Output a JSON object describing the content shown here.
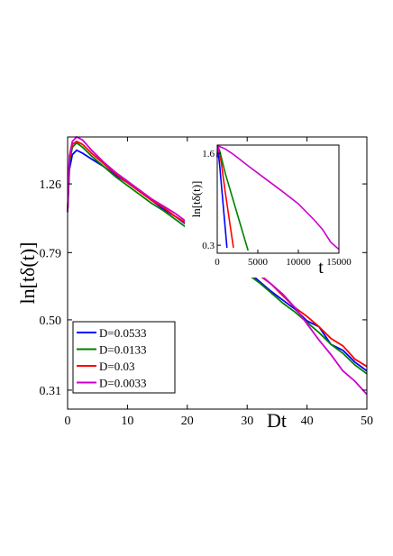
{
  "chart_data": [
    {
      "type": "line",
      "xlabel": "Dt",
      "ylabel": "ln[tδ(t)]",
      "xlim": [
        0,
        50
      ],
      "ylim_ln": [
        -1.3,
        0.55
      ],
      "y_scale": "log",
      "xticks": [
        0,
        10,
        20,
        30,
        40,
        50
      ],
      "xtick_labels": [
        "0",
        "10",
        "20",
        "30",
        "40",
        "50"
      ],
      "yticks_ln": [
        -1.171,
        -0.693,
        -0.236,
        0.231
      ],
      "ytick_labels": [
        "0.31",
        "0.50",
        "0.79",
        "1.26"
      ],
      "grid": false,
      "legend_position": "bottom-left",
      "series": [
        {
          "name": "D=0.0533",
          "color": "#0000ff",
          "x": [
            0,
            0.3,
            0.8,
            1.5,
            2.5,
            4,
            6,
            8,
            10,
            12,
            14,
            16,
            18,
            20,
            22,
            24,
            26,
            28,
            30,
            32,
            34,
            36,
            38,
            40,
            42,
            44,
            46,
            48,
            50
          ],
          "y": [
            0.04,
            0.33,
            0.43,
            0.46,
            0.44,
            0.4,
            0.35,
            0.29,
            0.24,
            0.18,
            0.12,
            0.06,
            0.01,
            -0.05,
            -0.11,
            -0.17,
            -0.24,
            -0.3,
            -0.36,
            -0.43,
            -0.5,
            -0.56,
            -0.62,
            -0.7,
            -0.74,
            -0.86,
            -0.9,
            -0.98,
            -1.04
          ]
        },
        {
          "name": "D=0.0133",
          "color": "#008000",
          "x": [
            0,
            0.3,
            0.8,
            1.5,
            2.5,
            4,
            6,
            8,
            10,
            12,
            14,
            16,
            18,
            20,
            22,
            24,
            26,
            28,
            30,
            32,
            34,
            36,
            38,
            40,
            42,
            44,
            46,
            48,
            50
          ],
          "y": [
            0.04,
            0.38,
            0.48,
            0.51,
            0.48,
            0.42,
            0.35,
            0.28,
            0.22,
            0.16,
            0.1,
            0.05,
            -0.01,
            -0.07,
            -0.12,
            -0.19,
            -0.25,
            -0.31,
            -0.38,
            -0.44,
            -0.51,
            -0.58,
            -0.64,
            -0.71,
            -0.78,
            -0.86,
            -0.92,
            -1.0,
            -1.06
          ]
        },
        {
          "name": "D=0.03",
          "color": "#ff0000",
          "x": [
            0,
            0.3,
            0.8,
            1.5,
            2.5,
            4,
            6,
            8,
            10,
            12,
            14,
            16,
            18,
            20,
            22,
            24,
            26,
            28,
            30,
            32,
            34,
            36,
            38,
            40,
            42,
            44,
            46,
            48,
            50
          ],
          "y": [
            0.04,
            0.4,
            0.5,
            0.52,
            0.5,
            0.44,
            0.37,
            0.3,
            0.24,
            0.18,
            0.12,
            0.07,
            0.01,
            -0.04,
            -0.1,
            -0.16,
            -0.22,
            -0.28,
            -0.33,
            -0.39,
            -0.45,
            -0.53,
            -0.61,
            -0.67,
            -0.74,
            -0.82,
            -0.87,
            -0.96,
            -1.01
          ]
        },
        {
          "name": "D=0.0033",
          "color": "#cc00cc",
          "x": [
            0,
            0.3,
            0.8,
            1.5,
            2.5,
            4,
            6,
            8,
            10,
            12,
            14,
            16,
            18,
            20,
            22,
            24,
            26,
            28,
            30,
            32,
            34,
            36,
            38,
            40,
            42,
            44,
            46,
            48,
            50
          ],
          "y": [
            0.04,
            0.42,
            0.52,
            0.55,
            0.53,
            0.46,
            0.38,
            0.31,
            0.25,
            0.19,
            0.13,
            0.08,
            0.03,
            -0.03,
            -0.09,
            -0.14,
            -0.2,
            -0.26,
            -0.32,
            -0.38,
            -0.45,
            -0.52,
            -0.61,
            -0.72,
            -0.83,
            -0.93,
            -1.04,
            -1.11,
            -1.2
          ]
        }
      ]
    },
    {
      "type": "line",
      "xlabel": "t",
      "ylabel": "ln[tδ(t)]",
      "xlim": [
        0,
        15000
      ],
      "ylim_ln": [
        -1.35,
        0.62
      ],
      "y_scale": "log",
      "xticks": [
        0,
        5000,
        10000,
        15000
      ],
      "xtick_labels": [
        "0",
        "5000",
        "10000",
        "15000"
      ],
      "yticks_ln": [
        -1.204,
        0.47
      ],
      "ytick_labels": [
        "0.3",
        "1.6"
      ],
      "grid": false,
      "series": [
        {
          "color": "#0000ff",
          "x": [
            0,
            30,
            100,
            300,
            600,
            900,
            1200
          ],
          "y": [
            0.4,
            0.55,
            0.52,
            0.25,
            -0.25,
            -0.75,
            -1.25
          ]
        },
        {
          "color": "#ff0000",
          "x": [
            0,
            60,
            200,
            500,
            1000,
            1500,
            2000
          ],
          "y": [
            0.4,
            0.56,
            0.53,
            0.3,
            -0.25,
            -0.75,
            -1.25
          ]
        },
        {
          "color": "#008000",
          "x": [
            0,
            100,
            300,
            1000,
            2000,
            3000,
            3800
          ],
          "y": [
            0.4,
            0.58,
            0.52,
            0.1,
            -0.4,
            -0.9,
            -1.3
          ]
        },
        {
          "color": "#cc00cc",
          "x": [
            0,
            200,
            500,
            1000,
            2000,
            4000,
            6000,
            8000,
            10000,
            12000,
            13000,
            14000,
            15000
          ],
          "y": [
            0.4,
            0.6,
            0.58,
            0.55,
            0.45,
            0.22,
            0.0,
            -0.22,
            -0.45,
            -0.75,
            -0.92,
            -1.15,
            -1.28
          ]
        }
      ]
    }
  ]
}
